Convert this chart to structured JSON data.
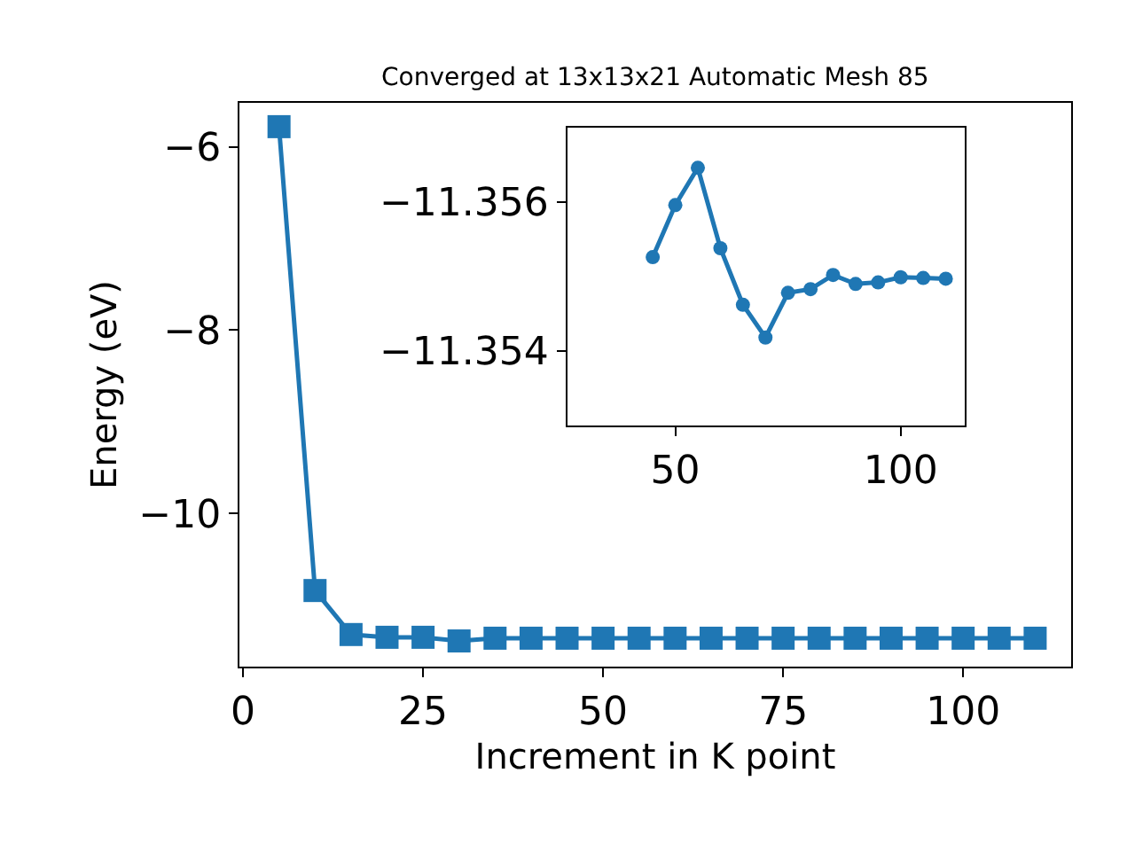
{
  "chart_data": [
    {
      "type": "line",
      "title": "Converged at 13x13x21 Automatic Mesh 85",
      "xlabel": "Increment in K point",
      "ylabel": "Energy (eV)",
      "x": [
        5,
        10,
        15,
        20,
        25,
        30,
        35,
        40,
        45,
        50,
        55,
        60,
        65,
        70,
        75,
        80,
        85,
        90,
        95,
        100,
        105,
        110
      ],
      "series": [
        {
          "color": "#1f77b4",
          "values": [
            -5.78,
            -10.84,
            -11.32,
            -11.35,
            -11.35,
            -11.39,
            -11.36,
            -11.36,
            -11.36,
            -11.36,
            -11.36,
            -11.36,
            -11.36,
            -11.36,
            -11.36,
            -11.36,
            -11.36,
            -11.36,
            -11.36,
            -11.36,
            -11.36,
            -11.36
          ]
        }
      ],
      "xlim": [
        -0.5,
        115
      ],
      "xticks": [
        0,
        25,
        50,
        75,
        100
      ],
      "ylim": [
        -11.67,
        -5.52
      ],
      "yticks": [
        {
          "value": -6,
          "label": "−6"
        },
        {
          "value": -8,
          "label": "−8"
        },
        {
          "value": -10,
          "label": "−10"
        }
      ],
      "marker": "square"
    },
    {
      "type": "line",
      "x": [
        45,
        50,
        55,
        60,
        65,
        70,
        75,
        80,
        85,
        90,
        95,
        100,
        105,
        110
      ],
      "series": [
        {
          "color": "#1f77b4",
          "values": [
            -11.35526,
            -11.35596,
            -11.35646,
            -11.35538,
            -11.35462,
            -11.35418,
            -11.35478,
            -11.35483,
            -11.35502,
            -11.3549,
            -11.35492,
            -11.35499,
            -11.35498,
            -11.35497
          ]
        }
      ],
      "xlim": [
        26,
        114.2
      ],
      "xticks": [
        50,
        100
      ],
      "ylim": [
        -11.353,
        -11.357
      ],
      "yticks": [
        {
          "value": -11.356,
          "label": "−11.356"
        },
        {
          "value": -11.354,
          "label": "−11.354"
        }
      ],
      "marker": "circle"
    }
  ]
}
